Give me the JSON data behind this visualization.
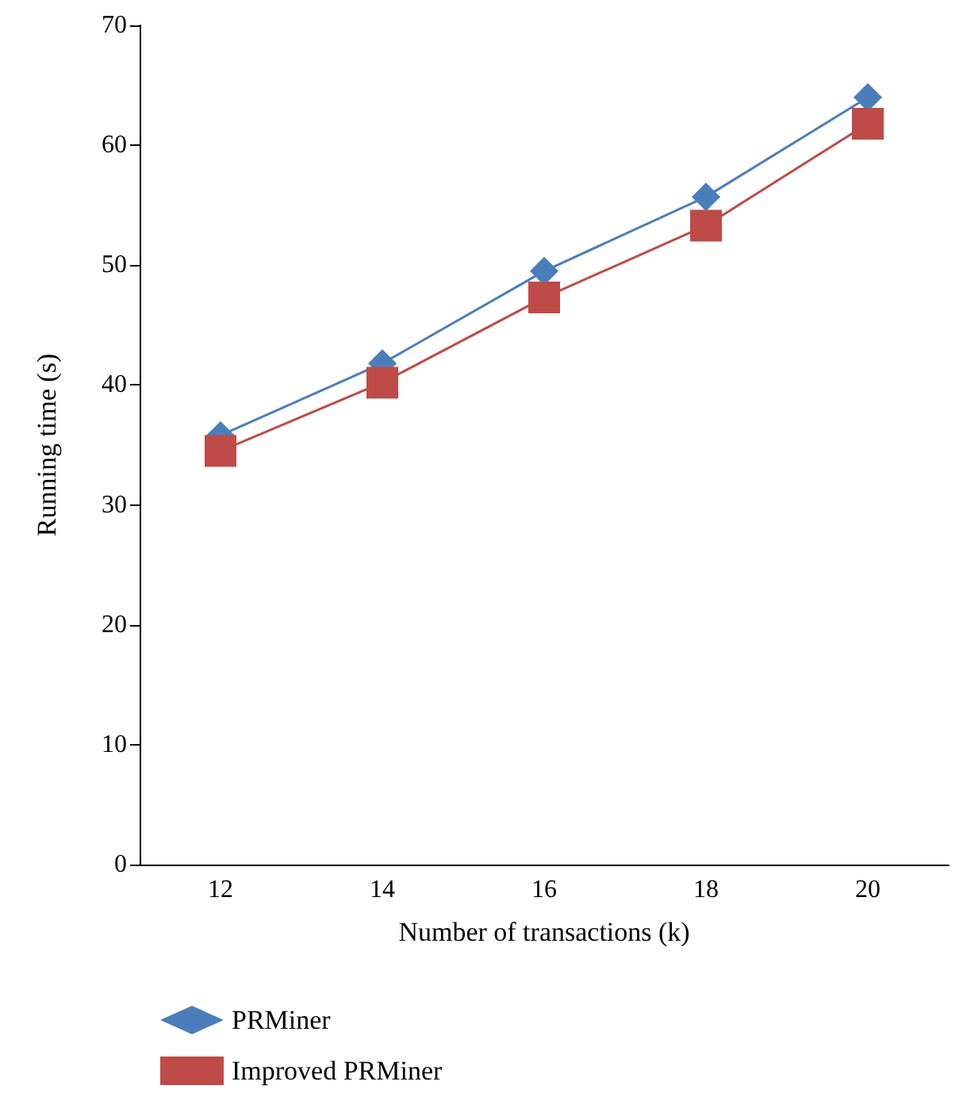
{
  "chart_data": {
    "type": "line",
    "xlabel": "Number of transactions (k)",
    "ylabel": "Running time (s)",
    "categories": [
      "12",
      "14",
      "16",
      "18",
      "20"
    ],
    "series": [
      {
        "name": "PRMiner",
        "color": "#4a7ebb",
        "marker": "diamond",
        "values": [
          35.8,
          41.8,
          49.5,
          55.7,
          64.0
        ]
      },
      {
        "name": "Improved PRMiner",
        "color": "#be4b48",
        "marker": "square",
        "values": [
          34.5,
          40.2,
          47.3,
          53.3,
          61.8
        ]
      }
    ],
    "ylim": [
      0,
      70
    ],
    "yticks": [
      0,
      10,
      20,
      30,
      40,
      50,
      60,
      70
    ],
    "grid": false,
    "legend": "bottom left",
    "line_style": "solid"
  }
}
